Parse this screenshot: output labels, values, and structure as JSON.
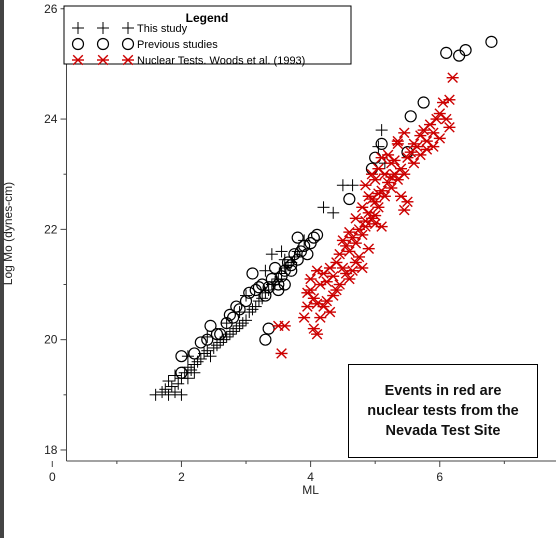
{
  "chart_data": {
    "type": "scatter",
    "title": "",
    "xlabel": "ML",
    "ylabel": "Log Mo (dynes-cm)",
    "xlim": [
      -0.5,
      7.8
    ],
    "ylim": [
      17.8,
      26.05
    ],
    "x_ticks": [
      0,
      2,
      4,
      6
    ],
    "y_ticks": [
      18,
      20,
      22,
      24,
      26
    ],
    "x_tick_labels": [
      "0",
      "2",
      "4",
      "6"
    ],
    "y_tick_labels": [
      "18",
      "20",
      "22",
      "24",
      "26"
    ],
    "grid": false,
    "legend": {
      "title": "Legend",
      "placement": "top-left",
      "entries": [
        "This study",
        "Previous studies",
        "Nuclear Tests.  Woods et al. (1993)"
      ]
    },
    "colors": {
      "this_study": "#000000",
      "previous_studies": "#000000",
      "nuclear_tests": "#cc0000"
    },
    "series": [
      {
        "name": "This study",
        "marker": "plus",
        "color": "#000000",
        "points": [
          [
            1.6,
            19.0
          ],
          [
            1.7,
            19.05
          ],
          [
            1.75,
            19.1
          ],
          [
            1.8,
            19.0
          ],
          [
            1.85,
            19.15
          ],
          [
            1.9,
            19.05
          ],
          [
            1.95,
            19.2
          ],
          [
            2.0,
            19.0
          ],
          [
            2.0,
            19.3
          ],
          [
            1.8,
            19.25
          ],
          [
            1.9,
            19.35
          ],
          [
            2.05,
            19.4
          ],
          [
            2.1,
            19.3
          ],
          [
            2.1,
            19.5
          ],
          [
            2.15,
            19.45
          ],
          [
            2.2,
            19.55
          ],
          [
            2.25,
            19.6
          ],
          [
            2.3,
            19.65
          ],
          [
            2.2,
            19.4
          ],
          [
            2.35,
            19.75
          ],
          [
            2.4,
            19.8
          ],
          [
            2.45,
            19.7
          ],
          [
            2.5,
            19.85
          ],
          [
            2.55,
            19.9
          ],
          [
            2.6,
            19.95
          ],
          [
            2.65,
            20.0
          ],
          [
            2.7,
            20.05
          ],
          [
            2.75,
            20.1
          ],
          [
            2.8,
            20.15
          ],
          [
            2.85,
            20.2
          ],
          [
            2.9,
            20.25
          ],
          [
            2.95,
            20.3
          ],
          [
            3.0,
            20.35
          ],
          [
            3.05,
            20.5
          ],
          [
            3.1,
            20.55
          ],
          [
            3.15,
            20.6
          ],
          [
            3.2,
            20.7
          ],
          [
            3.25,
            20.75
          ],
          [
            3.3,
            20.85
          ],
          [
            3.35,
            20.9
          ],
          [
            3.4,
            21.0
          ],
          [
            3.45,
            21.05
          ],
          [
            3.5,
            21.1
          ],
          [
            3.55,
            21.2
          ],
          [
            3.6,
            21.3
          ],
          [
            3.65,
            21.35
          ],
          [
            3.7,
            21.4
          ],
          [
            3.75,
            21.5
          ],
          [
            3.4,
            21.55
          ],
          [
            3.55,
            21.6
          ],
          [
            3.6,
            21.45
          ],
          [
            3.3,
            21.25
          ],
          [
            2.9,
            20.5
          ],
          [
            2.7,
            20.3
          ],
          [
            3.0,
            20.8
          ],
          [
            3.8,
            21.6
          ],
          [
            4.2,
            22.4
          ],
          [
            4.35,
            22.3
          ],
          [
            4.5,
            22.8
          ],
          [
            4.65,
            22.8
          ],
          [
            5.05,
            23.5
          ],
          [
            5.1,
            23.8
          ],
          [
            5.15,
            23.2
          ],
          [
            2.4,
            20.05
          ],
          [
            2.1,
            19.7
          ],
          [
            3.9,
            21.8
          ]
        ]
      },
      {
        "name": "Previous studies",
        "marker": "circle",
        "color": "#000000",
        "points": [
          [
            2.0,
            19.4
          ],
          [
            2.0,
            19.7
          ],
          [
            2.2,
            19.75
          ],
          [
            2.3,
            19.95
          ],
          [
            2.4,
            20.0
          ],
          [
            2.45,
            20.25
          ],
          [
            2.6,
            20.1
          ],
          [
            2.7,
            20.3
          ],
          [
            2.75,
            20.45
          ],
          [
            2.8,
            20.4
          ],
          [
            2.85,
            20.6
          ],
          [
            2.9,
            20.55
          ],
          [
            3.0,
            20.7
          ],
          [
            3.05,
            20.85
          ],
          [
            3.1,
            21.2
          ],
          [
            3.15,
            20.9
          ],
          [
            3.2,
            20.95
          ],
          [
            3.25,
            21.0
          ],
          [
            3.3,
            20.8
          ],
          [
            3.35,
            20.95
          ],
          [
            3.4,
            21.1
          ],
          [
            3.45,
            21.3
          ],
          [
            3.5,
            21.0
          ],
          [
            3.55,
            21.15
          ],
          [
            3.6,
            21.25
          ],
          [
            3.65,
            21.4
          ],
          [
            3.7,
            21.35
          ],
          [
            3.75,
            21.55
          ],
          [
            3.8,
            21.45
          ],
          [
            3.85,
            21.6
          ],
          [
            3.9,
            21.7
          ],
          [
            3.95,
            21.55
          ],
          [
            4.0,
            21.75
          ],
          [
            4.05,
            21.85
          ],
          [
            4.1,
            21.9
          ],
          [
            3.35,
            20.2
          ],
          [
            3.3,
            20.0
          ],
          [
            3.6,
            21.0
          ],
          [
            3.7,
            21.25
          ],
          [
            3.5,
            20.9
          ],
          [
            4.6,
            22.55
          ],
          [
            4.95,
            23.1
          ],
          [
            5.0,
            23.3
          ],
          [
            5.1,
            23.55
          ],
          [
            5.5,
            23.4
          ],
          [
            5.55,
            24.05
          ],
          [
            5.75,
            24.3
          ],
          [
            6.1,
            25.2
          ],
          [
            6.3,
            25.15
          ],
          [
            6.4,
            25.25
          ],
          [
            6.8,
            25.4
          ],
          [
            3.8,
            21.85
          ],
          [
            2.55,
            20.1
          ]
        ]
      },
      {
        "name": "Nuclear Tests.  Woods et al. (1993)",
        "marker": "asterisk",
        "color": "#cc0000",
        "points": [
          [
            3.5,
            20.25
          ],
          [
            3.6,
            20.25
          ],
          [
            3.55,
            19.75
          ],
          [
            4.1,
            20.1
          ],
          [
            3.9,
            20.4
          ],
          [
            3.95,
            20.6
          ],
          [
            4.0,
            20.9
          ],
          [
            4.05,
            20.75
          ],
          [
            4.1,
            20.65
          ],
          [
            4.15,
            21.0
          ],
          [
            4.2,
            21.2
          ],
          [
            4.25,
            21.05
          ],
          [
            4.3,
            21.3
          ],
          [
            4.35,
            21.15
          ],
          [
            4.4,
            21.4
          ],
          [
            4.45,
            21.55
          ],
          [
            4.5,
            21.3
          ],
          [
            4.55,
            21.7
          ],
          [
            4.6,
            21.6
          ],
          [
            4.65,
            21.85
          ],
          [
            4.7,
            21.75
          ],
          [
            4.75,
            22.0
          ],
          [
            4.8,
            21.9
          ],
          [
            4.85,
            22.15
          ],
          [
            4.9,
            22.3
          ],
          [
            4.95,
            22.2
          ],
          [
            5.0,
            22.5
          ],
          [
            5.05,
            22.4
          ],
          [
            5.1,
            22.7
          ],
          [
            5.15,
            22.6
          ],
          [
            5.2,
            22.85
          ],
          [
            5.25,
            22.75
          ],
          [
            5.3,
            23.0
          ],
          [
            5.35,
            22.9
          ],
          [
            5.4,
            23.1
          ],
          [
            5.45,
            23.0
          ],
          [
            5.5,
            23.3
          ],
          [
            5.55,
            23.4
          ],
          [
            5.6,
            23.55
          ],
          [
            5.65,
            23.5
          ],
          [
            5.7,
            23.7
          ],
          [
            5.75,
            23.8
          ],
          [
            5.8,
            23.6
          ],
          [
            5.85,
            23.9
          ],
          [
            5.9,
            23.75
          ],
          [
            5.95,
            24.0
          ],
          [
            6.0,
            24.1
          ],
          [
            6.05,
            24.3
          ],
          [
            6.1,
            24.0
          ],
          [
            6.15,
            23.85
          ],
          [
            6.2,
            24.75
          ],
          [
            6.15,
            24.35
          ],
          [
            4.95,
            23.0
          ],
          [
            5.0,
            22.9
          ],
          [
            5.05,
            23.1
          ],
          [
            5.1,
            23.3
          ],
          [
            5.15,
            23.0
          ],
          [
            5.2,
            23.35
          ],
          [
            4.9,
            22.6
          ],
          [
            4.85,
            22.8
          ],
          [
            5.25,
            23.2
          ],
          [
            5.3,
            23.25
          ],
          [
            5.35,
            23.6
          ],
          [
            5.4,
            22.6
          ],
          [
            5.45,
            22.35
          ],
          [
            5.5,
            22.5
          ],
          [
            5.0,
            22.1
          ],
          [
            4.8,
            22.4
          ],
          [
            4.7,
            22.2
          ],
          [
            4.6,
            21.95
          ],
          [
            4.55,
            21.2
          ],
          [
            4.45,
            21.0
          ],
          [
            4.35,
            20.8
          ],
          [
            4.25,
            20.7
          ],
          [
            4.2,
            20.6
          ],
          [
            4.3,
            20.5
          ],
          [
            4.15,
            20.4
          ],
          [
            4.05,
            20.2
          ],
          [
            3.95,
            20.85
          ],
          [
            4.4,
            20.9
          ],
          [
            4.6,
            21.1
          ],
          [
            4.7,
            21.4
          ],
          [
            4.8,
            21.3
          ],
          [
            4.9,
            21.65
          ],
          [
            4.75,
            21.5
          ],
          [
            4.85,
            22.05
          ],
          [
            5.0,
            22.25
          ],
          [
            5.1,
            22.05
          ],
          [
            5.6,
            23.2
          ],
          [
            5.7,
            23.35
          ],
          [
            5.8,
            23.45
          ],
          [
            5.9,
            23.5
          ],
          [
            6.0,
            23.65
          ],
          [
            4.5,
            21.8
          ],
          [
            4.65,
            21.25
          ],
          [
            4.0,
            21.1
          ],
          [
            4.1,
            21.25
          ],
          [
            5.45,
            23.75
          ],
          [
            5.35,
            23.55
          ],
          [
            5.25,
            22.95
          ],
          [
            4.95,
            22.55
          ],
          [
            5.05,
            22.65
          ]
        ]
      }
    ],
    "annotations": [
      {
        "text": "Events in red are nuclear tests from the Nevada Test Site",
        "placement": "bottom-right"
      }
    ]
  }
}
